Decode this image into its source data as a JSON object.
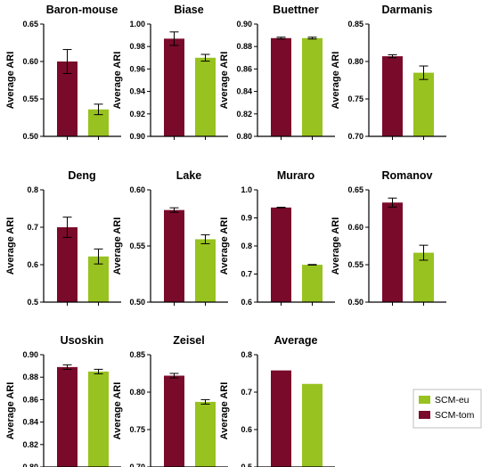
{
  "colors": {
    "scm_tom": "#7a0a2a",
    "scm_eu": "#98c21f",
    "axis": "#000000",
    "legend_border": "#bfbfbf"
  },
  "legend": {
    "placement": "bottom-right",
    "entries": [
      {
        "label": "SCM-eu",
        "series": "SCM-eu",
        "color": "#98c21f"
      },
      {
        "label": "SCM-tom",
        "series": "SCM-tom",
        "color": "#7a0a2a"
      }
    ]
  },
  "chart_data": [
    {
      "type": "bar",
      "title": "Baron-mouse",
      "ylabel": "Average ARI",
      "ylim": [
        0.5,
        0.65
      ],
      "ticks": [
        "0.50",
        "0.55",
        "0.60",
        "0.65"
      ],
      "grid": false,
      "series": [
        {
          "name": "SCM-tom",
          "value": 0.6,
          "error": 0.016
        },
        {
          "name": "SCM-eu",
          "value": 0.536,
          "error": 0.007
        }
      ]
    },
    {
      "type": "bar",
      "title": "Biase",
      "ylabel": "Average ARI",
      "ylim": [
        0.9,
        1.0
      ],
      "ticks": [
        "0.90",
        "0.92",
        "0.94",
        "0.96",
        "0.98",
        "1.00"
      ],
      "grid": false,
      "series": [
        {
          "name": "SCM-tom",
          "value": 0.987,
          "error": 0.006
        },
        {
          "name": "SCM-eu",
          "value": 0.97,
          "error": 0.003
        }
      ]
    },
    {
      "type": "bar",
      "title": "Buettner",
      "ylabel": "Average ARI",
      "ylim": [
        0.8,
        0.9
      ],
      "ticks": [
        "0.80",
        "0.82",
        "0.84",
        "0.86",
        "0.88",
        "0.90"
      ],
      "grid": false,
      "series": [
        {
          "name": "SCM-tom",
          "value": 0.8875,
          "error": 0.0008
        },
        {
          "name": "SCM-eu",
          "value": 0.8875,
          "error": 0.0008
        }
      ]
    },
    {
      "type": "bar",
      "title": "Darmanis",
      "ylabel": "Average ARI",
      "ylim": [
        0.7,
        0.85
      ],
      "ticks": [
        "0.70",
        "0.75",
        "0.80",
        "0.85"
      ],
      "grid": false,
      "series": [
        {
          "name": "SCM-tom",
          "value": 0.807,
          "error": 0.002
        },
        {
          "name": "SCM-eu",
          "value": 0.785,
          "error": 0.009
        }
      ]
    },
    {
      "type": "bar",
      "title": "Deng",
      "ylabel": "Average ARI",
      "ylim": [
        0.5,
        0.8
      ],
      "ticks": [
        "0.5",
        "0.6",
        "0.7",
        "0.8"
      ],
      "grid": false,
      "series": [
        {
          "name": "SCM-tom",
          "value": 0.7,
          "error": 0.027
        },
        {
          "name": "SCM-eu",
          "value": 0.622,
          "error": 0.02
        }
      ]
    },
    {
      "type": "bar",
      "title": "Lake",
      "ylabel": "Average ARI",
      "ylim": [
        0.5,
        0.6
      ],
      "ticks": [
        "0.50",
        "0.55",
        "0.60"
      ],
      "grid": false,
      "series": [
        {
          "name": "SCM-tom",
          "value": 0.582,
          "error": 0.002
        },
        {
          "name": "SCM-eu",
          "value": 0.556,
          "error": 0.004
        }
      ]
    },
    {
      "type": "bar",
      "title": "Muraro",
      "ylabel": "Average ARI",
      "ylim": [
        0.6,
        1.0
      ],
      "ticks": [
        "0.6",
        "0.7",
        "0.8",
        "0.9",
        "1.0"
      ],
      "grid": false,
      "series": [
        {
          "name": "SCM-tom",
          "value": 0.937,
          "error": 0.001
        },
        {
          "name": "SCM-eu",
          "value": 0.733,
          "error": 0.001
        }
      ]
    },
    {
      "type": "bar",
      "title": "Romanov",
      "ylabel": "Average ARI",
      "ylim": [
        0.5,
        0.65
      ],
      "ticks": [
        "0.50",
        "0.55",
        "0.60",
        "0.65"
      ],
      "grid": false,
      "series": [
        {
          "name": "SCM-tom",
          "value": 0.633,
          "error": 0.006
        },
        {
          "name": "SCM-eu",
          "value": 0.566,
          "error": 0.01
        }
      ]
    },
    {
      "type": "bar",
      "title": "Usoskin",
      "ylabel": "Average ARI",
      "ylim": [
        0.8,
        0.9
      ],
      "ticks": [
        "0.80",
        "0.82",
        "0.84",
        "0.86",
        "0.88",
        "0.90"
      ],
      "grid": false,
      "series": [
        {
          "name": "SCM-tom",
          "value": 0.889,
          "error": 0.002
        },
        {
          "name": "SCM-eu",
          "value": 0.885,
          "error": 0.002
        }
      ]
    },
    {
      "type": "bar",
      "title": "Zeisel",
      "ylabel": "Average ARI",
      "ylim": [
        0.7,
        0.85
      ],
      "ticks": [
        "0.70",
        "0.75",
        "0.80",
        "0.85"
      ],
      "grid": false,
      "series": [
        {
          "name": "SCM-tom",
          "value": 0.822,
          "error": 0.003
        },
        {
          "name": "SCM-eu",
          "value": 0.787,
          "error": 0.003
        }
      ]
    },
    {
      "type": "bar",
      "title": "Average",
      "ylabel": "Average ARI",
      "ylim": [
        0.5,
        0.8
      ],
      "ticks": [
        "0.5",
        "0.6",
        "0.7",
        "0.8"
      ],
      "grid": false,
      "series": [
        {
          "name": "SCM-tom",
          "value": 0.758,
          "error": 0
        },
        {
          "name": "SCM-eu",
          "value": 0.722,
          "error": 0
        }
      ]
    }
  ]
}
